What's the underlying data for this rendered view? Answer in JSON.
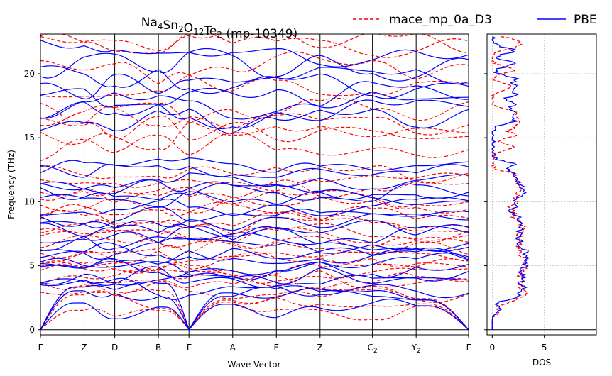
{
  "chart_data": [
    {
      "type": "line",
      "title_main": "Na",
      "title_parts": [
        {
          "t": "Na",
          "sub": false
        },
        {
          "t": "4",
          "sub": true
        },
        {
          "t": "Sn",
          "sub": false
        },
        {
          "t": "2",
          "sub": true
        },
        {
          "t": "O",
          "sub": false
        },
        {
          "t": "12",
          "sub": true
        },
        {
          "t": "Te",
          "sub": false
        },
        {
          "t": "2",
          "sub": true
        },
        {
          "t": " (mp-10349)",
          "sub": false
        }
      ],
      "title_text": "Na4Sn2O12Te2 (mp-10349)",
      "xlabel": "Wave Vector",
      "ylabel": "Frequency (THz)",
      "ylim": [
        -0.4,
        23.1
      ],
      "yticks": [
        "0",
        "5",
        "10",
        "15",
        "20"
      ],
      "kpoints": [
        {
          "label": "Γ",
          "sub": ""
        },
        {
          "label": "Z",
          "sub": ""
        },
        {
          "label": "D",
          "sub": ""
        },
        {
          "label": "B",
          "sub": ""
        },
        {
          "label": "Γ",
          "sub": ""
        },
        {
          "label": "A",
          "sub": ""
        },
        {
          "label": "E",
          "sub": ""
        },
        {
          "label": "Z",
          "sub": ""
        },
        {
          "label": "C",
          "sub": "2"
        },
        {
          "label": "Y",
          "sub": "2"
        },
        {
          "label": "Γ",
          "sub": ""
        }
      ],
      "kpoint_positions": [
        0,
        1,
        1.7,
        2.7,
        3.4,
        4.4,
        5.4,
        6.4,
        7.6,
        8.6,
        9.8
      ],
      "series": [
        {
          "name": "mace_mp_0a_D3",
          "color": "#ff0000",
          "style": "dashed"
        },
        {
          "name": "PBE",
          "color": "#0000ff",
          "style": "solid"
        }
      ],
      "legend_position": "top-right"
    },
    {
      "type": "line",
      "xlabel": "DOS",
      "xticks": [
        "0",
        "5"
      ],
      "xlim": [
        -0.5,
        10
      ],
      "ylim": [
        -0.4,
        23.1
      ],
      "grid": true
    }
  ]
}
